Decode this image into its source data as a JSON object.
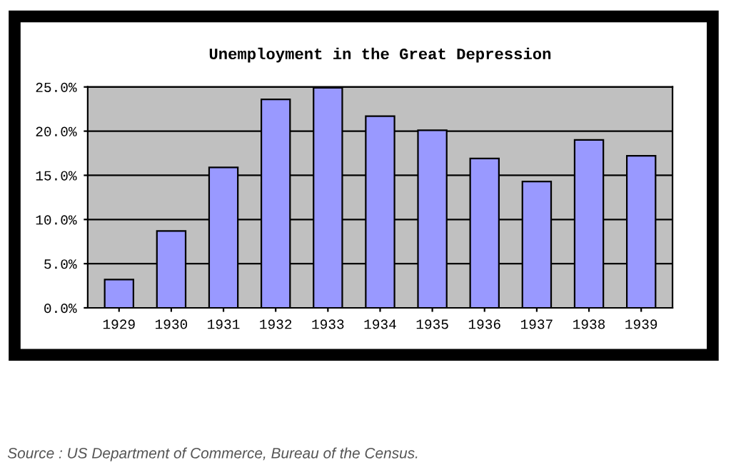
{
  "chart_data": {
    "type": "bar",
    "title": "Unemployment in the Great Depression",
    "categories": [
      "1929",
      "1930",
      "1931",
      "1932",
      "1933",
      "1934",
      "1935",
      "1936",
      "1937",
      "1938",
      "1939"
    ],
    "values": [
      3.2,
      8.7,
      15.9,
      23.6,
      24.9,
      21.7,
      20.1,
      16.9,
      14.3,
      19.0,
      17.2
    ],
    "color": "#9999ff",
    "ylim": [
      0,
      25
    ],
    "yticks": [
      {
        "value": 0,
        "label": "0.0%"
      },
      {
        "value": 5,
        "label": "5.0%"
      },
      {
        "value": 10,
        "label": "10.0%"
      },
      {
        "value": 15,
        "label": "15.0%"
      },
      {
        "value": 20,
        "label": "20.0%"
      },
      {
        "value": 25,
        "label": "25.0%"
      }
    ],
    "grid": "y",
    "annotations": [
      "Source : US Department of Commerce, Bureau of the Census."
    ]
  }
}
